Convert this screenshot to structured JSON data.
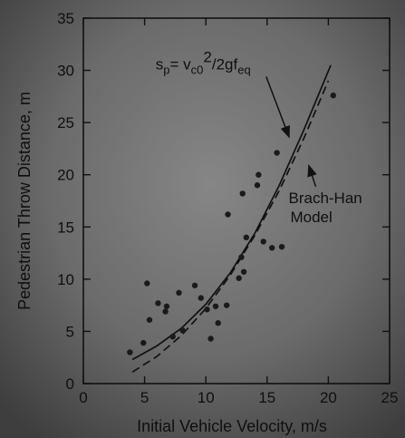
{
  "chart_data": {
    "type": "scatter",
    "title": "",
    "xlabel": "Initial Vehicle Velocity, m/s",
    "ylabel": "Pedestrian Throw Distance, m",
    "xlim": [
      0,
      25
    ],
    "ylim": [
      0,
      35
    ],
    "xticks": [
      0,
      5,
      10,
      15,
      20,
      25
    ],
    "yticks": [
      0,
      5,
      10,
      15,
      20,
      25,
      30,
      35
    ],
    "grid": false,
    "series": [
      {
        "name": "",
        "kind": "scatter",
        "points": [
          [
            3.8,
            3.0
          ],
          [
            4.9,
            3.9
          ],
          [
            5.2,
            9.6
          ],
          [
            5.4,
            6.1
          ],
          [
            6.1,
            7.7
          ],
          [
            6.7,
            6.9
          ],
          [
            6.8,
            7.4
          ],
          [
            7.3,
            4.5
          ],
          [
            7.8,
            8.7
          ],
          [
            8.1,
            5.1
          ],
          [
            9.1,
            9.4
          ],
          [
            9.6,
            8.2
          ],
          [
            10.1,
            7.1
          ],
          [
            10.4,
            4.3
          ],
          [
            10.8,
            7.4
          ],
          [
            11.0,
            5.8
          ],
          [
            11.7,
            7.5
          ],
          [
            11.8,
            16.2
          ],
          [
            12.7,
            10.1
          ],
          [
            12.9,
            12.1
          ],
          [
            13.0,
            18.2
          ],
          [
            13.1,
            10.7
          ],
          [
            13.3,
            14.0
          ],
          [
            14.2,
            19.0
          ],
          [
            14.3,
            20.0
          ],
          [
            14.7,
            13.6
          ],
          [
            15.4,
            13.0
          ],
          [
            15.8,
            22.1
          ],
          [
            16.2,
            13.1
          ],
          [
            20.4,
            27.6
          ]
        ],
        "color": "#1a1a1a"
      },
      {
        "name": "Brach-Han Model",
        "kind": "line",
        "style": "solid",
        "color": "#111111",
        "points": [
          [
            4.0,
            2.3
          ],
          [
            6.0,
            3.6
          ],
          [
            8.0,
            5.3
          ],
          [
            10.0,
            7.6
          ],
          [
            12.0,
            10.6
          ],
          [
            14.0,
            14.4
          ],
          [
            16.0,
            19.0
          ],
          [
            18.0,
            24.3
          ],
          [
            20.2,
            30.5
          ]
        ]
      },
      {
        "name": "s_p = v_c0^2/2gf_eq",
        "kind": "line",
        "style": "dashed",
        "color": "#111111",
        "points": [
          [
            4.0,
            1.1
          ],
          [
            6.0,
            2.6
          ],
          [
            8.0,
            4.6
          ],
          [
            10.0,
            7.2
          ],
          [
            12.0,
            10.4
          ],
          [
            14.0,
            14.2
          ],
          [
            16.0,
            18.5
          ],
          [
            18.0,
            23.5
          ],
          [
            20.0,
            29.0
          ]
        ]
      }
    ],
    "annotations": [
      {
        "id": "formula",
        "segments": [
          {
            "text": "s",
            "shift": "base",
            "size": "normal"
          },
          {
            "text": "p",
            "shift": "sub",
            "size": "small"
          },
          {
            "text": "= v",
            "shift": "base",
            "size": "normal"
          },
          {
            "text": "c0",
            "shift": "sub",
            "size": "small"
          },
          {
            "text": "2",
            "shift": "sup",
            "size": "normal"
          },
          {
            "text": "/2gf",
            "shift": "base",
            "size": "normal"
          },
          {
            "text": "eq",
            "shift": "sub",
            "size": "small"
          }
        ],
        "at": [
          5.9,
          30.1
        ],
        "arrow_to": [
          16.8,
          23.6
        ]
      },
      {
        "id": "model",
        "lines": [
          "Brach-Han",
          "Model"
        ],
        "at": [
          16.9,
          17.3
        ],
        "arrow_to": [
          18.4,
          20.9
        ]
      }
    ]
  }
}
